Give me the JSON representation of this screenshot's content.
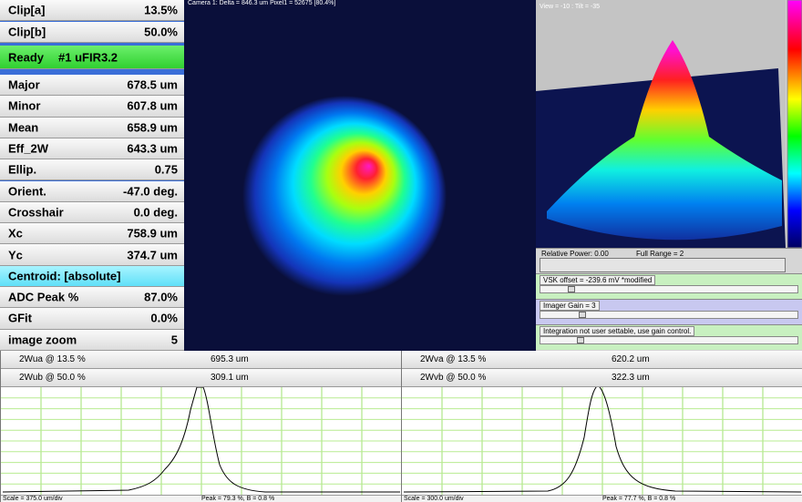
{
  "left_panel": {
    "clip": [
      {
        "label": "Clip[a]",
        "value": "13.5%"
      },
      {
        "label": "Clip[b]",
        "value": "50.0%"
      }
    ],
    "status": {
      "state": "Ready",
      "device": "#1 uFIR3.2"
    },
    "results": [
      {
        "label": "Major",
        "value": "678.5 um"
      },
      {
        "label": "Minor",
        "value": "607.8 um"
      },
      {
        "label": "Mean",
        "value": "658.9 um"
      },
      {
        "label": "Eff_2W",
        "value": "643.3 um"
      },
      {
        "label": "Ellip.",
        "value": "0.75"
      },
      {
        "label": "Orient.",
        "value": "-47.0 deg."
      },
      {
        "label": "Crosshair",
        "value": "0.0 deg."
      },
      {
        "label": "Xc",
        "value": "758.9 um"
      },
      {
        "label": "Yc",
        "value": "374.7 um"
      }
    ],
    "centroid": "Centroid: [absolute]",
    "settings": [
      {
        "label": "ADC Peak %",
        "value": "87.0%"
      },
      {
        "label": "GFit",
        "value": "0.0%"
      },
      {
        "label": "image zoom",
        "value": "5"
      }
    ]
  },
  "camera": {
    "caption": "Camera 1: Delta = 846.3 um Pixel1 = 52675 [80.4%]"
  },
  "view_3d": {
    "caption": "View = -10 : Tilt = -35"
  },
  "power": {
    "relative": "Relative Power: 0.00",
    "range": "Full Range = 2"
  },
  "controls": [
    {
      "label": "VSK offset = -239.6 mV  *modified"
    },
    {
      "label": "Imager Gain = 3"
    },
    {
      "label": "Integration not user settable, use gain control."
    }
  ],
  "profiles": [
    {
      "rows": [
        {
          "label": "2Wua @ 13.5 %",
          "value": "695.3 um"
        },
        {
          "label": "2Wub @ 50.0 %",
          "value": "309.1 um"
        }
      ],
      "scale": "Scale = 375.0 um/div",
      "peak": "Peak = 79.3 %, B = 0.8 %"
    },
    {
      "rows": [
        {
          "label": "2Wva @ 13.5 %",
          "value": "620.2 um"
        },
        {
          "label": "2Wvb @ 50.0 %",
          "value": "322.3 um"
        }
      ],
      "scale": "Scale = 300.0 um/div",
      "peak": "Peak = 77.7 %, B = 0.8 %"
    }
  ]
}
